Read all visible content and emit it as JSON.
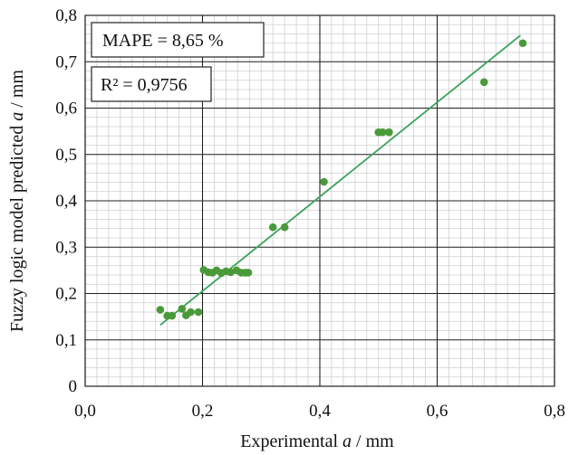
{
  "chart_data": {
    "type": "scatter",
    "title": "",
    "xlabel_prefix": "Experimental ",
    "xlabel_var": "a",
    "xlabel_suffix": " / mm",
    "ylabel_prefix": "Fuzzy logic model predicted ",
    "ylabel_var": "a",
    "ylabel_suffix": " / mm",
    "xlim": [
      0,
      0.8
    ],
    "ylim": [
      0,
      0.8
    ],
    "x_ticks": [
      0,
      0.2,
      0.4,
      0.6,
      0.8
    ],
    "x_tick_labels": [
      "0,0",
      "0,2",
      "0,4",
      "0,6",
      "0,8"
    ],
    "y_ticks": [
      0,
      0.1,
      0.2,
      0.3,
      0.4,
      0.5,
      0.6,
      0.7,
      0.8
    ],
    "y_tick_labels": [
      "0",
      "0,1",
      "0,2",
      "0,3",
      "0,4",
      "0,5",
      "0,6",
      "0,7",
      "0,8"
    ],
    "grid": true,
    "legend": "none",
    "point_color": "#4a9a3a",
    "line_color": "#3aa35a",
    "points": [
      {
        "x": 0.128,
        "y": 0.165
      },
      {
        "x": 0.14,
        "y": 0.152
      },
      {
        "x": 0.148,
        "y": 0.152
      },
      {
        "x": 0.165,
        "y": 0.167
      },
      {
        "x": 0.172,
        "y": 0.153
      },
      {
        "x": 0.18,
        "y": 0.16
      },
      {
        "x": 0.193,
        "y": 0.16
      },
      {
        "x": 0.202,
        "y": 0.251
      },
      {
        "x": 0.21,
        "y": 0.246
      },
      {
        "x": 0.217,
        "y": 0.245
      },
      {
        "x": 0.224,
        "y": 0.25
      },
      {
        "x": 0.232,
        "y": 0.244
      },
      {
        "x": 0.24,
        "y": 0.248
      },
      {
        "x": 0.248,
        "y": 0.246
      },
      {
        "x": 0.258,
        "y": 0.25
      },
      {
        "x": 0.266,
        "y": 0.245
      },
      {
        "x": 0.273,
        "y": 0.245
      },
      {
        "x": 0.278,
        "y": 0.245
      },
      {
        "x": 0.32,
        "y": 0.343
      },
      {
        "x": 0.34,
        "y": 0.343
      },
      {
        "x": 0.407,
        "y": 0.441
      },
      {
        "x": 0.5,
        "y": 0.548
      },
      {
        "x": 0.507,
        "y": 0.548
      },
      {
        "x": 0.518,
        "y": 0.548
      },
      {
        "x": 0.68,
        "y": 0.656
      },
      {
        "x": 0.746,
        "y": 0.74
      }
    ],
    "trendline": {
      "x": [
        0.128,
        0.742
      ],
      "y": [
        0.132,
        0.757
      ]
    },
    "annotations": {
      "mape": "MAPE = 8,65 %",
      "r2": "R² = 0,9756"
    }
  }
}
